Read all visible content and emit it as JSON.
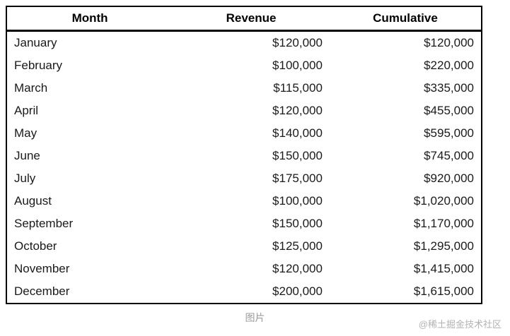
{
  "table": {
    "headers": [
      "Month",
      "Revenue",
      "Cumulative"
    ],
    "rows": [
      {
        "month": "January",
        "revenue": "$120,000",
        "cumulative": "$120,000"
      },
      {
        "month": "February",
        "revenue": "$100,000",
        "cumulative": "$220,000"
      },
      {
        "month": "March",
        "revenue": "$115,000",
        "cumulative": "$335,000"
      },
      {
        "month": "April",
        "revenue": "$120,000",
        "cumulative": "$455,000"
      },
      {
        "month": "May",
        "revenue": "$140,000",
        "cumulative": "$595,000"
      },
      {
        "month": "June",
        "revenue": "$150,000",
        "cumulative": "$745,000"
      },
      {
        "month": "July",
        "revenue": "$175,000",
        "cumulative": "$920,000"
      },
      {
        "month": "August",
        "revenue": "$100,000",
        "cumulative": "$1,020,000"
      },
      {
        "month": "September",
        "revenue": "$150,000",
        "cumulative": "$1,170,000"
      },
      {
        "month": "October",
        "revenue": "$125,000",
        "cumulative": "$1,295,000"
      },
      {
        "month": "November",
        "revenue": "$120,000",
        "cumulative": "$1,415,000"
      },
      {
        "month": "December",
        "revenue": "$200,000",
        "cumulative": "$1,615,000"
      }
    ]
  },
  "caption": "图片",
  "watermark": "@稀土掘金技术社区",
  "colors": {
    "table_border": "#000000",
    "text": "#1a1a1a",
    "caption_text": "#9c9c9c",
    "watermark_text": "#b3b3b3",
    "background": "#ffffff"
  },
  "chart_data": {
    "type": "table",
    "title": "",
    "columns": [
      "Month",
      "Revenue",
      "Cumulative"
    ],
    "months": [
      "January",
      "February",
      "March",
      "April",
      "May",
      "June",
      "July",
      "August",
      "September",
      "October",
      "November",
      "December"
    ],
    "revenue": [
      120000,
      100000,
      115000,
      120000,
      140000,
      150000,
      175000,
      100000,
      150000,
      125000,
      120000,
      200000
    ],
    "cumulative": [
      120000,
      220000,
      335000,
      455000,
      595000,
      745000,
      920000,
      1020000,
      1170000,
      1295000,
      1415000,
      1615000
    ],
    "currency": "USD",
    "layout": {
      "grid": "outer-border-and-header-rule-only",
      "header_align": "center",
      "month_align": "left",
      "value_align": "right"
    }
  }
}
